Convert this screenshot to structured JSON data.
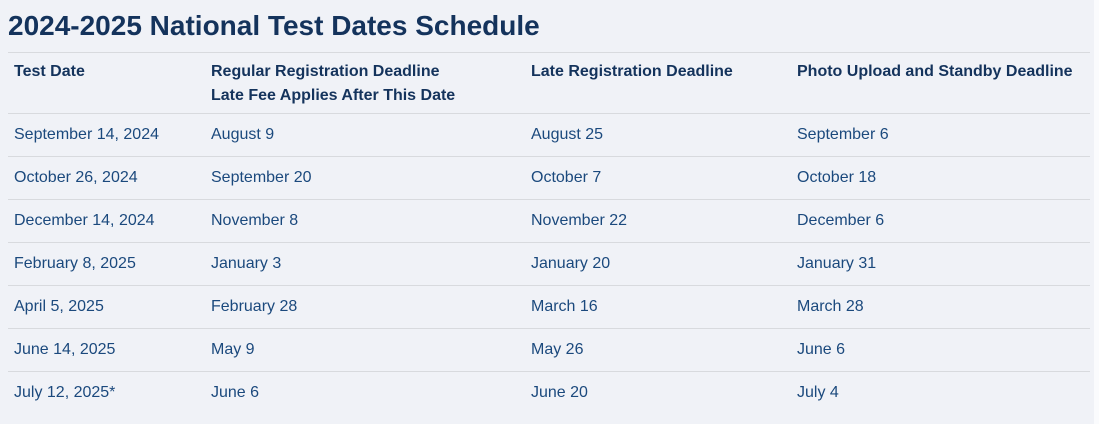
{
  "page": {
    "title": "2024-2025 National Test Dates Schedule"
  },
  "colors": {
    "background": "#f0f2f7",
    "heading_text": "#14335c",
    "cell_text": "#1b497d",
    "divider": "#d8dade"
  },
  "table": {
    "columns": [
      {
        "label": "Test Date",
        "sublabel": ""
      },
      {
        "label": "Regular Registration Deadline",
        "sublabel": "Late Fee Applies After This Date"
      },
      {
        "label": "Late Registration Deadline",
        "sublabel": ""
      },
      {
        "label": "Photo Upload and Standby Deadline",
        "sublabel": ""
      }
    ],
    "rows": [
      [
        "September 14, 2024",
        "August 9",
        "August 25",
        "September 6"
      ],
      [
        "October 26, 2024",
        "September 20",
        "October 7",
        "October 18"
      ],
      [
        "December 14, 2024",
        "November 8",
        "November 22",
        "December 6"
      ],
      [
        "February 8, 2025",
        "January 3",
        "January 20",
        "January 31"
      ],
      [
        "April 5, 2025",
        "February 28",
        "March 16",
        "March 28"
      ],
      [
        "June 14, 2025",
        "May 9",
        "May 26",
        "June 6"
      ],
      [
        "July 12, 2025*",
        "June 6",
        "June 20",
        "July 4"
      ]
    ]
  }
}
